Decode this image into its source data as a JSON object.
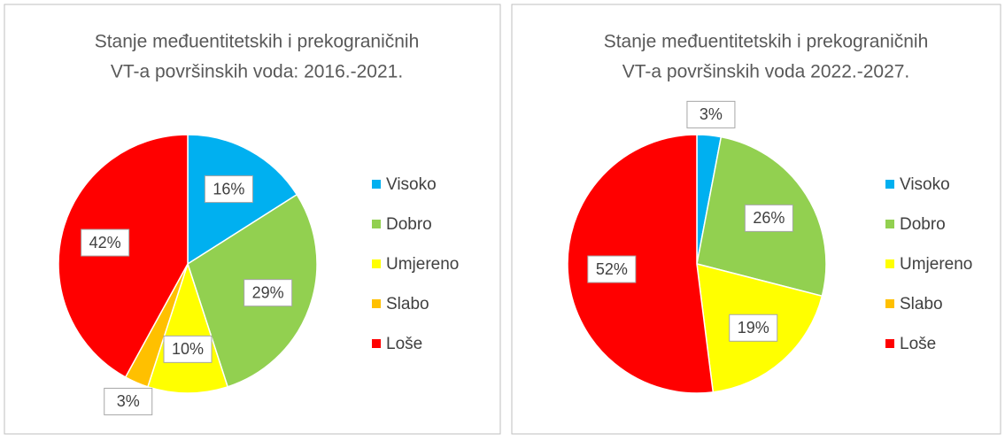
{
  "chart_data": [
    {
      "type": "pie",
      "title": [
        "Stanje međuentitetskih i prekograničnih",
        "VT-a površinskih voda: 2016.-2021."
      ],
      "categories": [
        "Visoko",
        "Dobro",
        "Umjereno",
        "Slabo",
        "Loše"
      ],
      "values": [
        16,
        29,
        10,
        3,
        42
      ],
      "value_labels": [
        "16%",
        "29%",
        "10%",
        "3%",
        "42%"
      ],
      "colors": [
        "#00b0f0",
        "#92d050",
        "#ffff00",
        "#ffc000",
        "#ff0000"
      ],
      "legend": "right"
    },
    {
      "type": "pie",
      "title": [
        "Stanje međuentitetskih i prekograničnih",
        "VT-a površinskih voda 2022.-2027."
      ],
      "categories": [
        "Visoko",
        "Dobro",
        "Umjereno",
        "Slabo",
        "Loše"
      ],
      "values": [
        3,
        26,
        19,
        0,
        52
      ],
      "value_labels": [
        "3%",
        "26%",
        "19%",
        null,
        "52%"
      ],
      "colors": [
        "#00b0f0",
        "#92d050",
        "#ffff00",
        "#ffc000",
        "#ff0000"
      ],
      "legend": "right"
    }
  ]
}
